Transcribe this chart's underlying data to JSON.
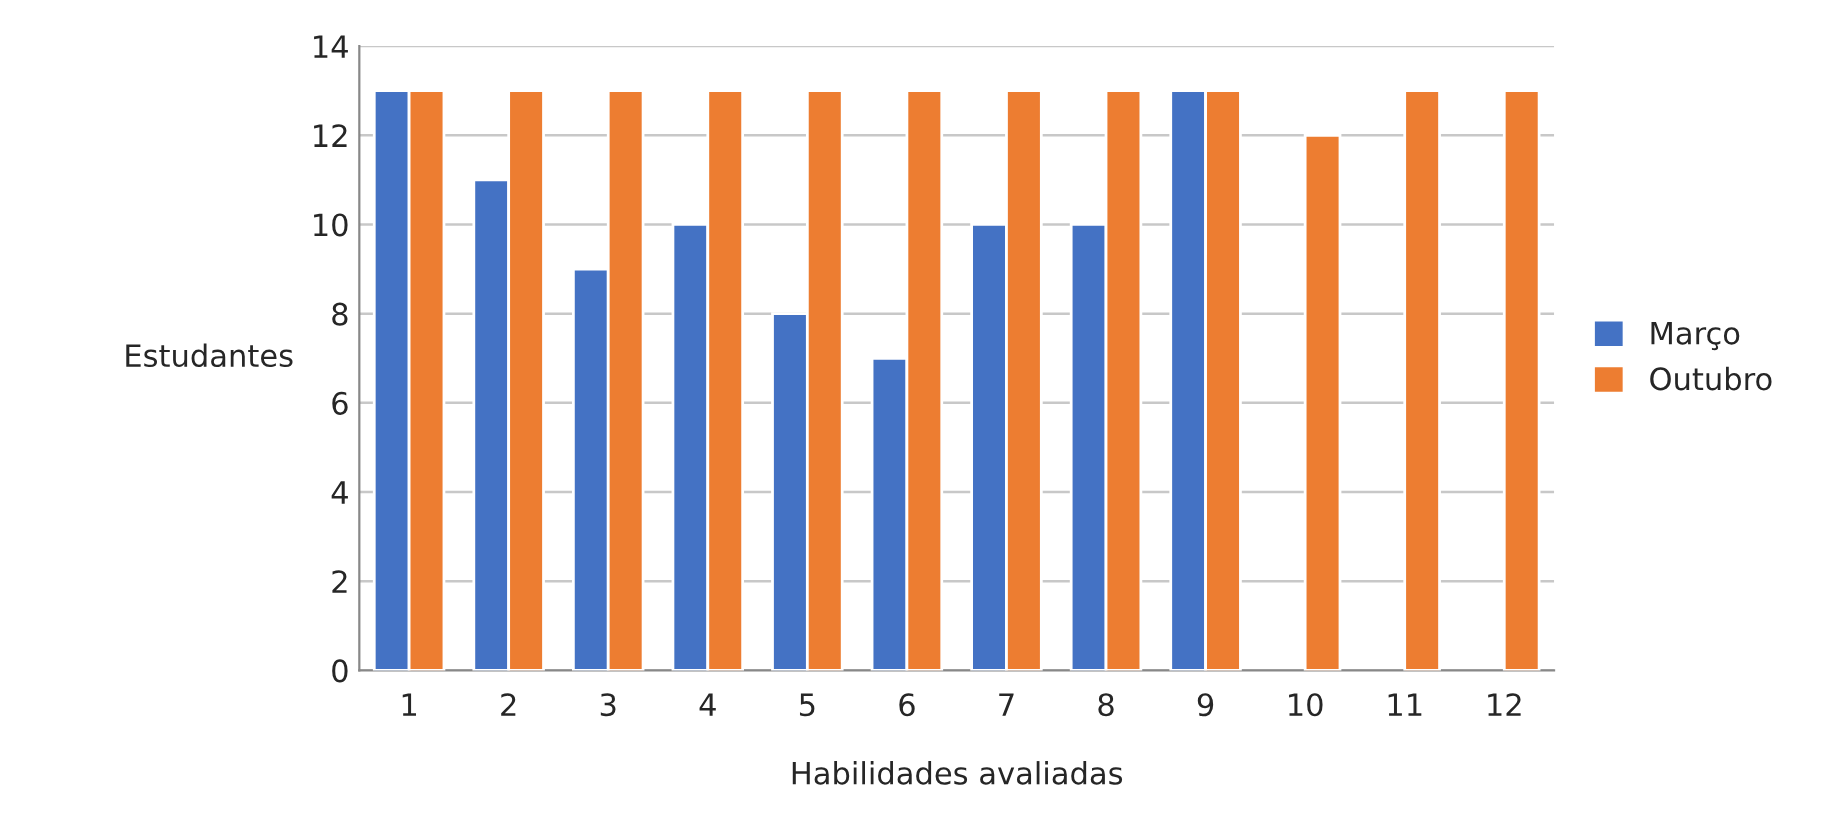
{
  "chart_data": {
    "type": "bar",
    "xlabel": "Habilidades avaliadas",
    "ylabel": "Estudantes",
    "categories": [
      "1",
      "2",
      "3",
      "4",
      "5",
      "6",
      "7",
      "8",
      "9",
      "10",
      "11",
      "12"
    ],
    "series": [
      {
        "name": "Março",
        "color": "#4472c4",
        "values": [
          13,
          11,
          9,
          10,
          8,
          7,
          10,
          10,
          13,
          null,
          null,
          null
        ]
      },
      {
        "name": "Outubro",
        "color": "#ed7d31",
        "values": [
          13,
          13,
          13,
          13,
          13,
          13,
          13,
          13,
          13,
          12,
          13,
          13
        ]
      }
    ],
    "ylim": [
      0,
      14
    ],
    "yticks": [
      0,
      2,
      4,
      6,
      8,
      10,
      12,
      14
    ],
    "grid": "y",
    "legend": "right"
  }
}
